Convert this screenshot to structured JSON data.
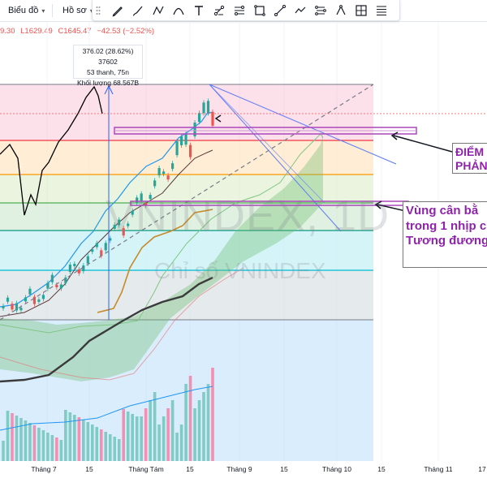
{
  "toolbar": {
    "chart_type_label": "Biểu đồ",
    "profile_label": "Hồ sơ",
    "drawing_tools": [
      "pencil-icon",
      "brush-icon",
      "path-icon",
      "curve-icon",
      "text-icon",
      "fork-icon",
      "fib-icon",
      "rectangle-icon",
      "trendline-icon",
      "polyline-icon",
      "pattern-icon",
      "triangle-icon",
      "measure-icon",
      "fib-levels-icon"
    ]
  },
  "ohlc": {
    "open": "9.30",
    "low": "L1629.49",
    "close": "C1645.47",
    "change": "−42.53 (−2.52%)"
  },
  "measure_tooltip": {
    "line1": "376.02 (28.62%) 37602",
    "line2": "53 thanh, 75n",
    "line3": "Khối lượng 68.567B"
  },
  "watermark": {
    "symbol": "VNINDEX, 1D",
    "description": "Chỉ số VNINDEX"
  },
  "annotations": {
    "note1_line1": "ĐIỂM",
    "note1_line2": "PHẢN",
    "note2_line1": "Vùng cân bằ",
    "note2_line2": "trong 1 nhịp c",
    "note2_line3": "Tương đương"
  },
  "x_axis": {
    "labels": [
      "Tháng 7",
      "15",
      "Tháng Tám",
      "15",
      "Tháng 9",
      "15",
      "Tháng 10",
      "15",
      "Tháng 11",
      "17"
    ]
  },
  "colors": {
    "up": "#26a69a",
    "down": "#ef5350",
    "annotation": "#8e24aa",
    "fib_red": "#f23645",
    "fib_orange": "#ff9800",
    "fib_green": "#4caf50",
    "fib_teal": "#089981",
    "fib_cyan": "#00bcd4",
    "line_blue": "#2962ff"
  }
}
